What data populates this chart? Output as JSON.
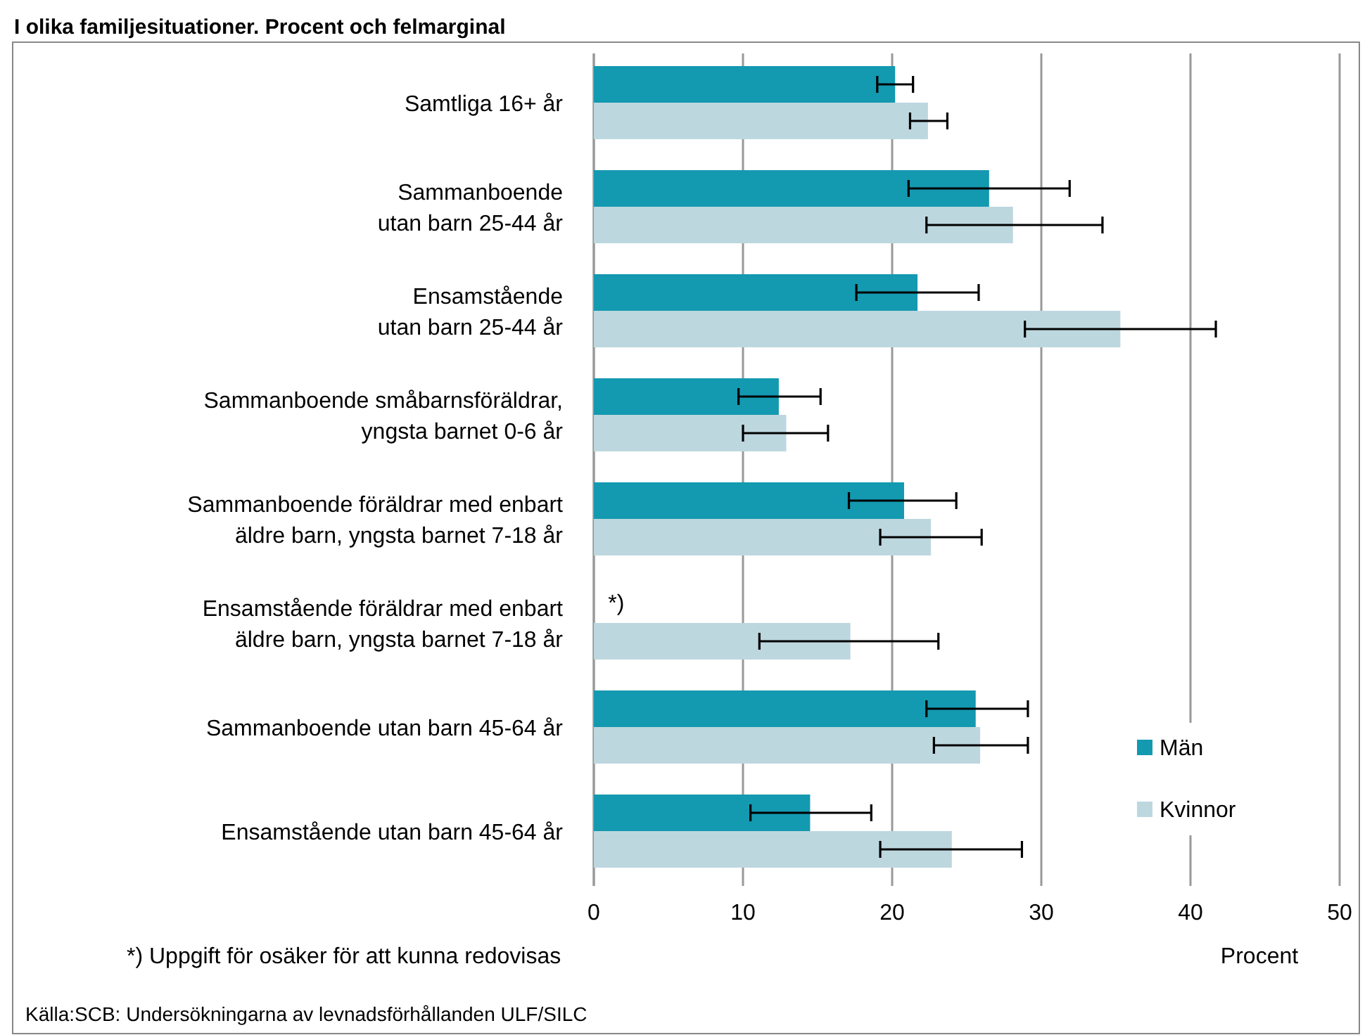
{
  "chart_data": {
    "type": "bar",
    "orientation": "horizontal",
    "title": "I olika familjesituationer. Procent och felmarginal",
    "xlabel": "Procent",
    "categories": [
      "Samtliga 16+ år",
      "Sammanboende\nutan barn 25-44 år",
      "Ensamstående\nutan barn 25-44 år",
      "Sammanboende småbarnsföräldrar,\nyngsta barnet 0-6 år",
      "Sammanboende föräldrar med enbart\näldre barn, yngsta barnet 7-18 år",
      "Ensamstående föräldrar med enbart\näldre barn, yngsta barnet 7-18 år",
      "Sammanboende utan barn 45-64 år",
      "Ensamstående utan barn 45-64 år"
    ],
    "series": [
      {
        "name": "Män",
        "color": "#1399b0",
        "values": [
          20.2,
          26.5,
          21.7,
          12.4,
          20.8,
          null,
          25.6,
          14.5
        ],
        "errors": [
          [
            19.0,
            21.4
          ],
          [
            21.1,
            31.9
          ],
          [
            17.6,
            25.8
          ],
          [
            9.7,
            15.2
          ],
          [
            17.1,
            24.3
          ],
          null,
          [
            22.3,
            29.1
          ],
          [
            10.5,
            18.6
          ]
        ]
      },
      {
        "name": "Kvinnor",
        "color": "#bdd7df",
        "values": [
          22.4,
          28.1,
          35.3,
          12.9,
          22.6,
          17.2,
          25.9,
          24.0
        ],
        "errors": [
          [
            21.2,
            23.7
          ],
          [
            22.3,
            34.1
          ],
          [
            28.9,
            41.7
          ],
          [
            10.0,
            15.7
          ],
          [
            19.2,
            26.0
          ],
          [
            11.1,
            23.1
          ],
          [
            22.8,
            29.1
          ],
          [
            19.2,
            28.7
          ]
        ]
      }
    ],
    "xlim": [
      0,
      50
    ],
    "xticks": [
      0,
      10,
      20,
      30,
      40,
      50
    ],
    "grid": "x",
    "legend": "bottom right",
    "annotations": [
      {
        "text": "*)",
        "x": 1.5,
        "y": "Ensamstående föräldrar med enbart\näldre barn, yngsta barnet 7-18 år"
      },
      "*) Uppgift för osäker för att kunna redovisas",
      "Källa:SCB: Undersökningarna av levnadsförhållanden ULF/SILC"
    ]
  }
}
